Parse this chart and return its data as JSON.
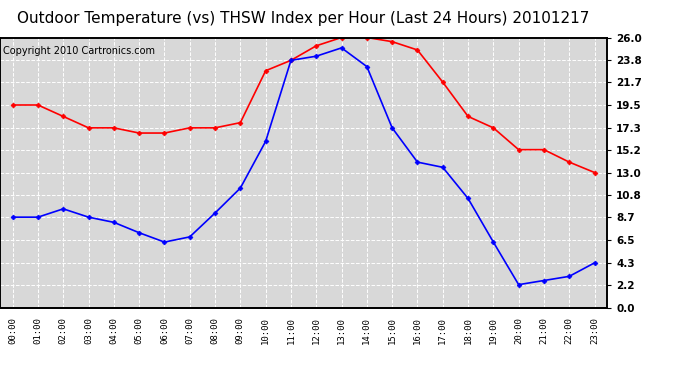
{
  "title": "Outdoor Temperature (vs) THSW Index per Hour (Last 24 Hours) 20101217",
  "copyright": "Copyright 2010 Cartronics.com",
  "hours": [
    "00:00",
    "01:00",
    "02:00",
    "03:00",
    "04:00",
    "05:00",
    "06:00",
    "07:00",
    "08:00",
    "09:00",
    "10:00",
    "11:00",
    "12:00",
    "13:00",
    "14:00",
    "15:00",
    "16:00",
    "17:00",
    "18:00",
    "19:00",
    "20:00",
    "21:00",
    "22:00",
    "23:00"
  ],
  "red_data": [
    19.5,
    19.5,
    18.4,
    17.3,
    17.3,
    16.8,
    16.8,
    17.3,
    17.3,
    17.8,
    22.8,
    23.8,
    25.2,
    26.0,
    26.0,
    25.6,
    24.8,
    21.7,
    18.4,
    17.3,
    15.2,
    15.2,
    14.0,
    13.0
  ],
  "blue_data": [
    8.7,
    8.7,
    9.5,
    8.7,
    8.2,
    7.2,
    6.3,
    6.8,
    9.1,
    11.5,
    16.0,
    23.8,
    24.2,
    25.0,
    23.2,
    17.3,
    14.0,
    13.5,
    10.5,
    6.3,
    2.2,
    2.6,
    3.0,
    4.3
  ],
  "ylim": [
    0.0,
    26.0
  ],
  "yticks": [
    0.0,
    2.2,
    4.3,
    6.5,
    8.7,
    10.8,
    13.0,
    15.2,
    17.3,
    19.5,
    21.7,
    23.8,
    26.0
  ],
  "red_color": "#ff0000",
  "blue_color": "#0000ff",
  "bg_color": "#ffffff",
  "plot_bg_color": "#d8d8d8",
  "grid_color": "#ffffff",
  "title_color": "#000000",
  "title_fontsize": 11,
  "copyright_fontsize": 7
}
